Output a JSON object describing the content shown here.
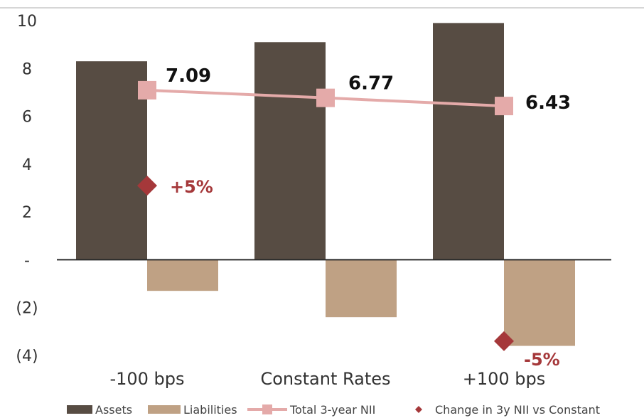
{
  "chart_data": {
    "type": "bar",
    "categories": [
      "-100 bps",
      "Constant Rates",
      "+100 bps"
    ],
    "ylim": [
      -4,
      10
    ],
    "yticks": [
      {
        "value": 10,
        "label": "10"
      },
      {
        "value": 8,
        "label": "8"
      },
      {
        "value": 6,
        "label": "6"
      },
      {
        "value": 4,
        "label": "4"
      },
      {
        "value": 2,
        "label": "2"
      },
      {
        "value": 0,
        "label": "-"
      },
      {
        "value": -2,
        "label": "(2)"
      },
      {
        "value": -4,
        "label": "(4)"
      }
    ],
    "series": [
      {
        "name": "Assets",
        "kind": "bar",
        "color": "#574c43",
        "values": [
          8.3,
          9.1,
          9.9
        ]
      },
      {
        "name": "Liabilities",
        "kind": "bar",
        "color": "#bfa184",
        "values": [
          -1.3,
          -2.4,
          -3.6
        ]
      },
      {
        "name": "Total 3-year NII",
        "kind": "line",
        "color": "#e4aaa9",
        "values": [
          7.09,
          6.77,
          6.43
        ],
        "labels": [
          "7.09",
          "6.77",
          "6.43"
        ]
      },
      {
        "name": "Change in 3y NII vs Constant",
        "kind": "marker",
        "color": "#a5383a",
        "values": [
          3.1,
          null,
          -3.4
        ],
        "labels": [
          "+5%",
          "",
          "-5%"
        ]
      }
    ],
    "legend": "bottom"
  }
}
